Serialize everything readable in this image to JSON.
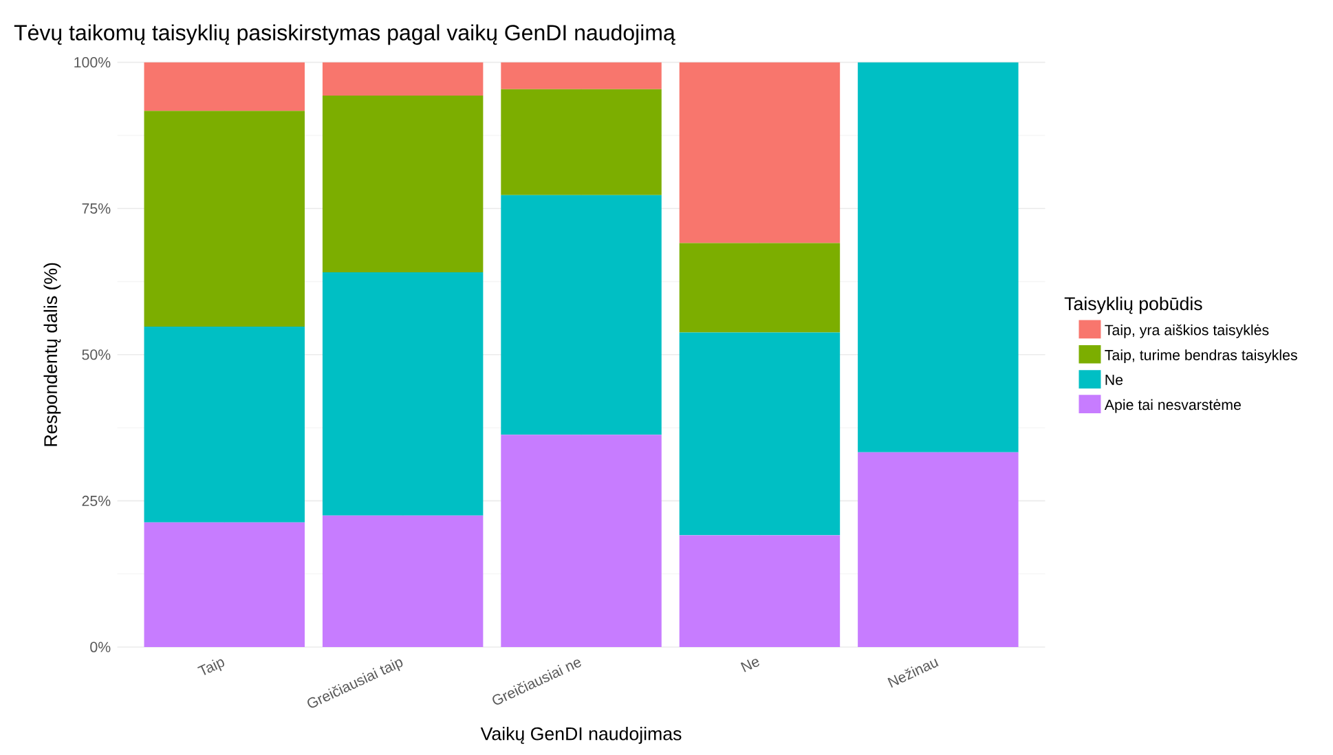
{
  "chart_data": {
    "type": "bar",
    "stacked": true,
    "title": "Tėvų taikomų taisyklių pasiskirstymas pagal vaikų GenDI naudojimą",
    "xlabel": "Vaikų GenDI naudojimas",
    "ylabel": "Respondentų dalis (%)",
    "legend_title": "Taisyklių pobūdis",
    "legend": "right",
    "grid": true,
    "categories": [
      "Taip",
      "Greičiausiai taip",
      "Greičiausiai ne",
      "Ne",
      "Nežinau"
    ],
    "ylim": [
      0,
      100
    ],
    "yticks": [
      {
        "value": 0,
        "label": "0%"
      },
      {
        "value": 25,
        "label": "25%"
      },
      {
        "value": 50,
        "label": "50%"
      },
      {
        "value": 75,
        "label": "75%"
      },
      {
        "value": 100,
        "label": "100%"
      }
    ],
    "series": [
      {
        "name": "Apie tai nesvarstėme",
        "color": "#c77cff",
        "values": [
          21.3,
          22.5,
          36.3,
          19.1,
          33.3
        ]
      },
      {
        "name": "Ne",
        "color": "#00bfc4",
        "values": [
          33.5,
          41.6,
          41.0,
          34.7,
          66.7
        ]
      },
      {
        "name": "Taip, turime bendras taisykles",
        "color": "#7cae00",
        "values": [
          36.9,
          30.2,
          18.1,
          15.3,
          0
        ]
      },
      {
        "name": "Taip, yra aiškios taisyklės",
        "color": "#f8766d",
        "values": [
          8.3,
          5.7,
          4.6,
          30.9,
          0
        ]
      }
    ]
  }
}
